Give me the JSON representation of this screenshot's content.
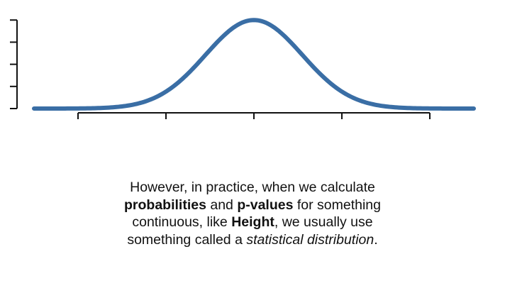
{
  "chart_data": {
    "type": "line",
    "title": "",
    "xlabel": "",
    "ylabel": "",
    "xlim": [
      -2.5,
      2.5
    ],
    "ylim": [
      0,
      1.05
    ],
    "x_ticks": [
      -2,
      -1,
      0,
      1,
      2
    ],
    "y_ticks": [
      0,
      0.25,
      0.5,
      0.75,
      1.0
    ],
    "grid": false,
    "series": [
      {
        "curve": "normal",
        "mean": 0,
        "sd": 0.55,
        "peak": 1.0
      }
    ],
    "colors": {
      "curve": "#3a6ea5",
      "axis": "#111111"
    }
  },
  "caption": {
    "l1": "However, in practice, when we calculate",
    "l2_b1": "probabilities",
    "l2_t1": " and ",
    "l2_b2": "p-values",
    "l2_t2": " for something",
    "l3_t1": "continuous, like ",
    "l3_b1": "Height",
    "l3_t2": ", we usually use",
    "l4_t1": "something called a ",
    "l4_i1": "statistical distribution",
    "l4_t2": "."
  }
}
